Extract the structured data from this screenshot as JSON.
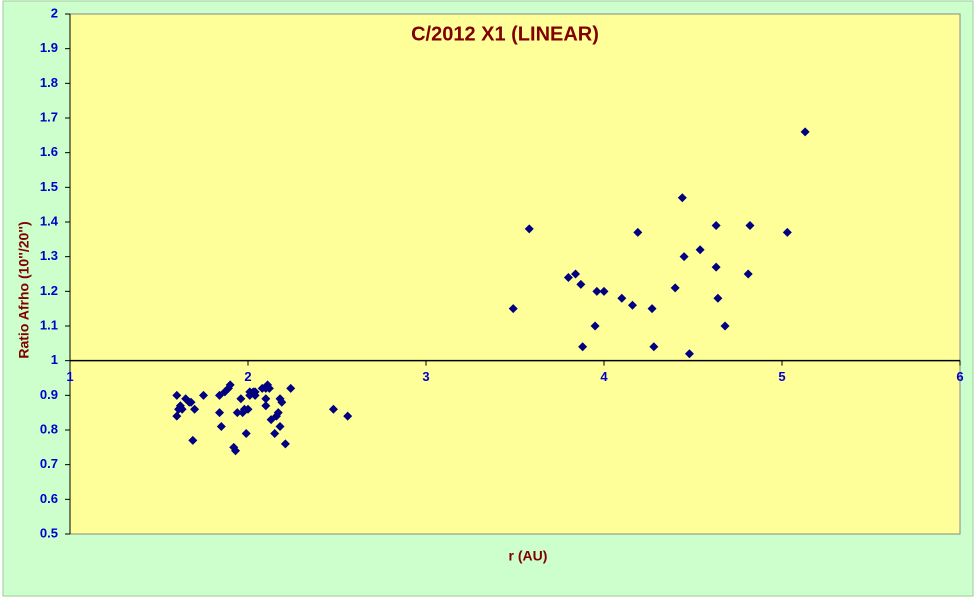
{
  "chart_data": {
    "type": "scatter",
    "title": "C/2012 X1 (LINEAR)",
    "x_label": "r (AU)",
    "y_label": "Ratio Afrho (10''/20'')",
    "xlim": [
      1,
      6
    ],
    "xticks": [
      1,
      2,
      3,
      4,
      5,
      6
    ],
    "ylim": [
      0.5,
      2
    ],
    "yticks": [
      0.5,
      0.6,
      0.7,
      0.8,
      0.9,
      1,
      1.1,
      1.2,
      1.3,
      1.4,
      1.5,
      1.6,
      1.7,
      1.8,
      1.9,
      2
    ],
    "x_axis_crosses_at": 1,
    "color": "#000080",
    "x": [
      1.6,
      1.61,
      1.62,
      1.6,
      1.63,
      1.65,
      1.67,
      1.7,
      1.69,
      1.68,
      1.75,
      1.84,
      1.85,
      1.84,
      1.87,
      1.89,
      1.9,
      1.92,
      1.93,
      1.94,
      1.96,
      1.97,
      1.98,
      1.99,
      2.0,
      2.01,
      2.01,
      2.03,
      2.04,
      2.04,
      2.08,
      2.1,
      2.1,
      2.1,
      2.11,
      2.12,
      2.13,
      2.15,
      2.16,
      2.17,
      2.18,
      2.18,
      2.19,
      2.21,
      2.24,
      2.48,
      2.56,
      3.49,
      3.58,
      3.8,
      3.84,
      3.87,
      3.88,
      3.95,
      3.96,
      4.0,
      4.1,
      4.16,
      4.19,
      4.27,
      4.28,
      4.4,
      4.44,
      4.45,
      4.48,
      4.54,
      4.63,
      4.63,
      4.64,
      4.68,
      4.81,
      4.82,
      5.03,
      5.13
    ],
    "y": [
      0.9,
      0.86,
      0.87,
      0.84,
      0.86,
      0.89,
      0.88,
      0.86,
      0.77,
      0.88,
      0.9,
      0.9,
      0.81,
      0.85,
      0.91,
      0.92,
      0.93,
      0.75,
      0.74,
      0.85,
      0.89,
      0.85,
      0.86,
      0.79,
      0.86,
      0.9,
      0.91,
      0.91,
      0.9,
      0.91,
      0.92,
      0.92,
      0.89,
      0.87,
      0.93,
      0.92,
      0.83,
      0.79,
      0.84,
      0.85,
      0.89,
      0.81,
      0.88,
      0.76,
      0.92,
      0.86,
      0.84,
      1.15,
      1.38,
      1.24,
      1.25,
      1.22,
      1.04,
      1.1,
      1.2,
      1.2,
      1.18,
      1.16,
      1.37,
      1.15,
      1.04,
      1.21,
      1.47,
      1.3,
      1.02,
      1.32,
      1.39,
      1.27,
      1.18,
      1.1,
      1.25,
      1.39,
      1.37,
      1.66
    ]
  }
}
